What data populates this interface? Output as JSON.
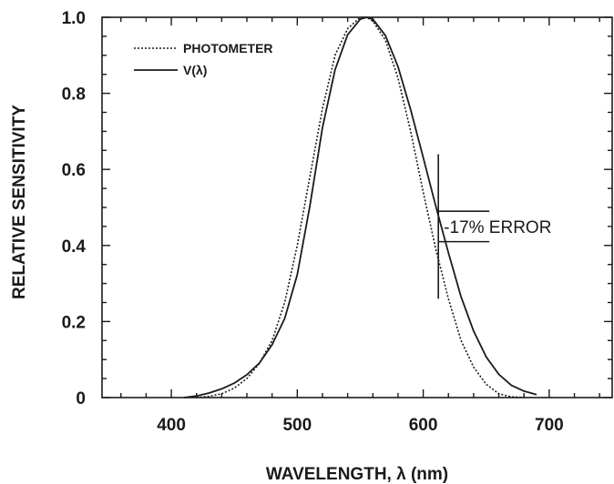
{
  "chart_data": {
    "type": "line",
    "title": "",
    "xlabel": "WAVELENGTH, λ (nm)",
    "ylabel": "RELATIVE SENSITIVITY",
    "xlim": [
      345,
      750
    ],
    "ylim": [
      0,
      1.0
    ],
    "x_ticks": [
      400,
      500,
      600,
      700
    ],
    "x_tick_labels": [
      "400",
      "500",
      "600",
      "700"
    ],
    "y_ticks": [
      0,
      0.2,
      0.4,
      0.6,
      0.8,
      1.0
    ],
    "y_tick_labels": [
      "0",
      "0.2",
      "0.4",
      "0.6",
      "0.8",
      "1.0"
    ],
    "grid": false,
    "legend_position": "top-left",
    "series": [
      {
        "name": "PHOTOMETER",
        "style": "dotted",
        "x": [
          420,
          430,
          440,
          450,
          460,
          470,
          480,
          490,
          500,
          510,
          520,
          530,
          540,
          550,
          555,
          560,
          570,
          580,
          590,
          600,
          610,
          620,
          630,
          640,
          650,
          660,
          670,
          680
        ],
        "y": [
          0.0,
          0.003,
          0.01,
          0.025,
          0.05,
          0.09,
          0.15,
          0.25,
          0.4,
          0.58,
          0.76,
          0.9,
          0.97,
          1.0,
          1.0,
          0.99,
          0.94,
          0.84,
          0.7,
          0.54,
          0.39,
          0.26,
          0.15,
          0.08,
          0.035,
          0.01,
          0.002,
          0.0
        ]
      },
      {
        "name": "V(λ)",
        "style": "solid",
        "x": [
          410,
          420,
          430,
          440,
          450,
          460,
          470,
          480,
          490,
          500,
          510,
          520,
          530,
          540,
          550,
          555,
          560,
          570,
          580,
          590,
          600,
          610,
          620,
          630,
          640,
          650,
          660,
          670,
          680,
          690
        ],
        "y": [
          0.0,
          0.004,
          0.012,
          0.023,
          0.038,
          0.06,
          0.091,
          0.139,
          0.208,
          0.323,
          0.503,
          0.71,
          0.862,
          0.954,
          0.995,
          1.0,
          0.995,
          0.952,
          0.87,
          0.757,
          0.631,
          0.503,
          0.381,
          0.265,
          0.175,
          0.107,
          0.061,
          0.032,
          0.017,
          0.008
        ]
      }
    ],
    "annotation": {
      "text": "-17% ERROR",
      "x": 612,
      "upper": 0.49,
      "lower": 0.41,
      "vline": [
        0.26,
        0.64
      ]
    }
  }
}
